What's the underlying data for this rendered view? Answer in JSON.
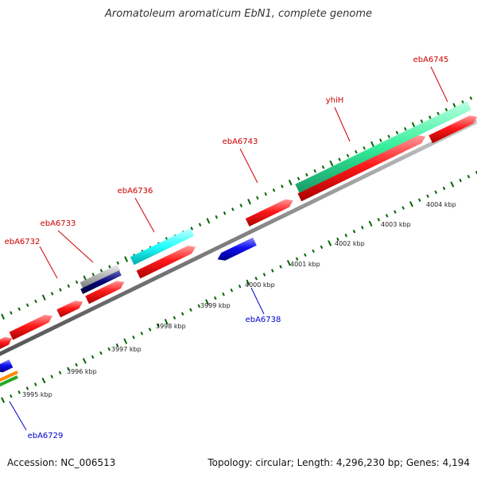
{
  "title": "Aromatoleum aromaticum EbN1, complete genome",
  "footer": {
    "accession": "Accession: NC_006513",
    "summary": "Topology: circular; Length: 4,296,230 bp; Genes: 4,194"
  },
  "colors": {
    "forward_feature": "#ff0000",
    "reverse_feature": "#0000dd",
    "forward_label": "#cc0000",
    "reverse_label": "#0000cc",
    "backbone": "#808080",
    "ticks": "#006400",
    "cyan_feature": "#22ffff",
    "teal_feature": "#33ee99"
  },
  "ruler": {
    "labels": [
      "3995 kbp",
      "3996 kbp",
      "3997 kbp",
      "3998 kbp",
      "3999 kbp",
      "4000 kbp",
      "4001 kbp",
      "4002 kbp",
      "4003 kbp",
      "4004 kbp"
    ]
  },
  "gene_labels": [
    {
      "name": "ebA6745",
      "strand": "forward"
    },
    {
      "name": "yhiH",
      "strand": "forward"
    },
    {
      "name": "ebA6743",
      "strand": "forward"
    },
    {
      "name": "ebA6736",
      "strand": "forward"
    },
    {
      "name": "ebA6733",
      "strand": "forward"
    },
    {
      "name": "ebA6732",
      "strand": "forward"
    },
    {
      "name": "ebA6738",
      "strand": "reverse"
    },
    {
      "name": "ebA6729",
      "strand": "reverse"
    }
  ]
}
